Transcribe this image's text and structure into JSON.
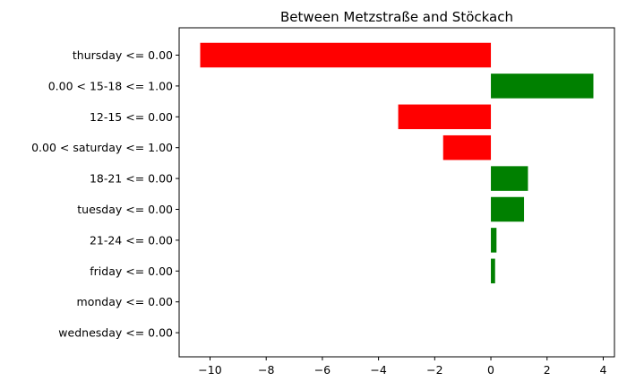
{
  "chart_data": {
    "type": "bar",
    "orientation": "horizontal",
    "title": "Between Metzstraße and Stöckach",
    "xlabel": "",
    "ylabel": "",
    "categories": [
      "thursday <= 0.00",
      "0.00 < 15-18 <= 1.00",
      "12-15 <= 0.00",
      "0.00 < saturday <= 1.00",
      "18-21 <= 0.00",
      "tuesday <= 0.00",
      "21-24 <= 0.00",
      "friday <= 0.00",
      "monday <= 0.00",
      "wednesday <= 0.00"
    ],
    "values": [
      -10.35,
      3.65,
      -3.3,
      -1.7,
      1.32,
      1.18,
      0.2,
      0.15,
      0.0,
      0.0
    ],
    "xlim": [
      -11.1,
      4.4
    ],
    "xticks": [
      -10,
      -8,
      -6,
      -4,
      -2,
      0,
      2,
      4
    ],
    "xtick_labels": [
      "−10",
      "−8",
      "−6",
      "−4",
      "−2",
      "0",
      "2",
      "4"
    ],
    "grid": false,
    "legend": "none",
    "colors": {
      "positive": "#008000",
      "negative": "#ff0000"
    }
  }
}
